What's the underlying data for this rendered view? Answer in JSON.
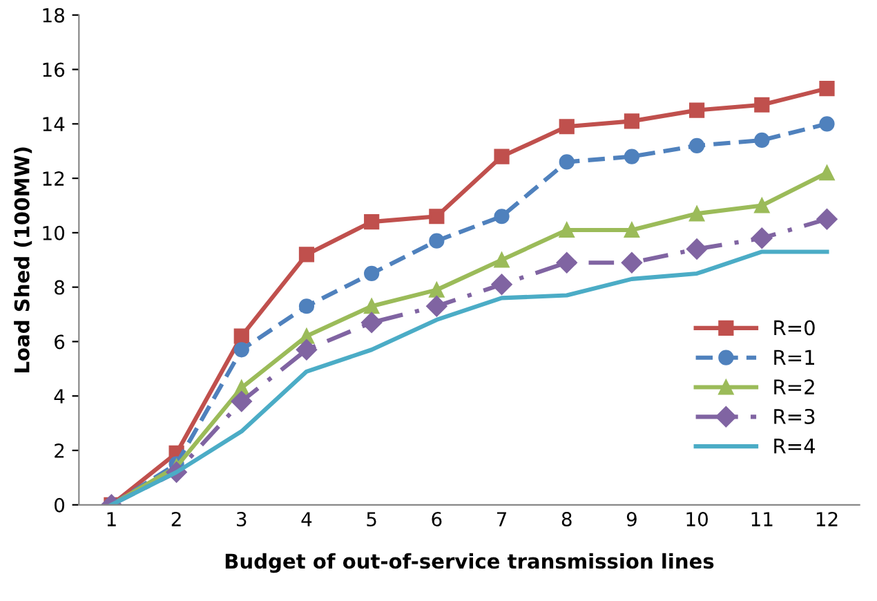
{
  "chart_data": {
    "type": "line",
    "xlabel": "Budget of out-of-service transmission lines",
    "ylabel": "Load Shed (100MW)",
    "categories": [
      "1",
      "2",
      "3",
      "4",
      "5",
      "6",
      "7",
      "8",
      "9",
      "10",
      "11",
      "12"
    ],
    "ylim": [
      0,
      18
    ],
    "yticks": [
      0,
      2,
      4,
      6,
      8,
      10,
      12,
      14,
      16,
      18
    ],
    "grid": false,
    "legend": "bottom right",
    "series": [
      {
        "name": "R=0",
        "color": "#c0504d",
        "marker": "square",
        "line_style": "solid",
        "values": [
          0,
          1.9,
          6.2,
          9.2,
          10.4,
          10.6,
          12.8,
          13.9,
          14.1,
          14.5,
          14.7,
          15.3
        ]
      },
      {
        "name": "R=1",
        "color": "#4f81bd",
        "marker": "circle",
        "line_style": "dashed",
        "values": [
          0,
          1.5,
          5.7,
          7.3,
          8.5,
          9.7,
          10.6,
          12.6,
          12.8,
          13.2,
          13.4,
          14.0
        ]
      },
      {
        "name": "R=2",
        "color": "#9bbb59",
        "marker": "triangle",
        "line_style": "solid",
        "values": [
          0,
          1.4,
          4.3,
          6.2,
          7.3,
          7.9,
          9.0,
          10.1,
          10.1,
          10.7,
          11.0,
          12.2
        ]
      },
      {
        "name": "R=3",
        "color": "#8064a2",
        "marker": "diamond",
        "line_style": "dashdot",
        "values": [
          0,
          1.2,
          3.8,
          5.7,
          6.7,
          7.3,
          8.1,
          8.9,
          8.9,
          9.4,
          9.8,
          10.5
        ]
      },
      {
        "name": "R=4",
        "color": "#4bacc6",
        "marker": "none",
        "line_style": "solid",
        "values": [
          0,
          1.2,
          2.7,
          4.9,
          5.7,
          6.8,
          7.6,
          7.7,
          8.3,
          8.5,
          9.3,
          9.3
        ]
      }
    ]
  }
}
